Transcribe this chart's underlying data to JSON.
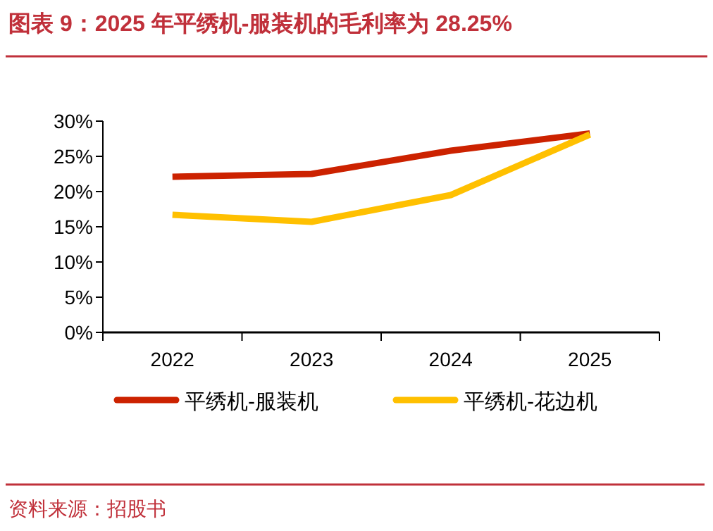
{
  "chart_data": {
    "type": "line",
    "title": "图表 9：2025 年平绣机-服装机的毛利率为 28.25%",
    "categories": [
      "2022",
      "2023",
      "2024",
      "2025"
    ],
    "series": [
      {
        "name": "平绣机-服装机",
        "color": "#cc2200",
        "values": [
          22.1,
          22.5,
          25.8,
          28.25
        ]
      },
      {
        "name": "平绣机-花边机",
        "color": "#ffc000",
        "values": [
          16.7,
          15.7,
          19.5,
          28.1
        ]
      }
    ],
    "ylim": [
      0,
      30
    ],
    "yticks": [
      {
        "value": 0,
        "label": "0%"
      },
      {
        "value": 5,
        "label": "5%"
      },
      {
        "value": 10,
        "label": "10%"
      },
      {
        "value": 15,
        "label": "15%"
      },
      {
        "value": 20,
        "label": "20%"
      },
      {
        "value": 25,
        "label": "25%"
      },
      {
        "value": 30,
        "label": "30%"
      }
    ],
    "grid": false,
    "legend": "bottom",
    "marker": "none",
    "line_style": "solid",
    "annotations": [
      "资料来源：招股书"
    ]
  }
}
